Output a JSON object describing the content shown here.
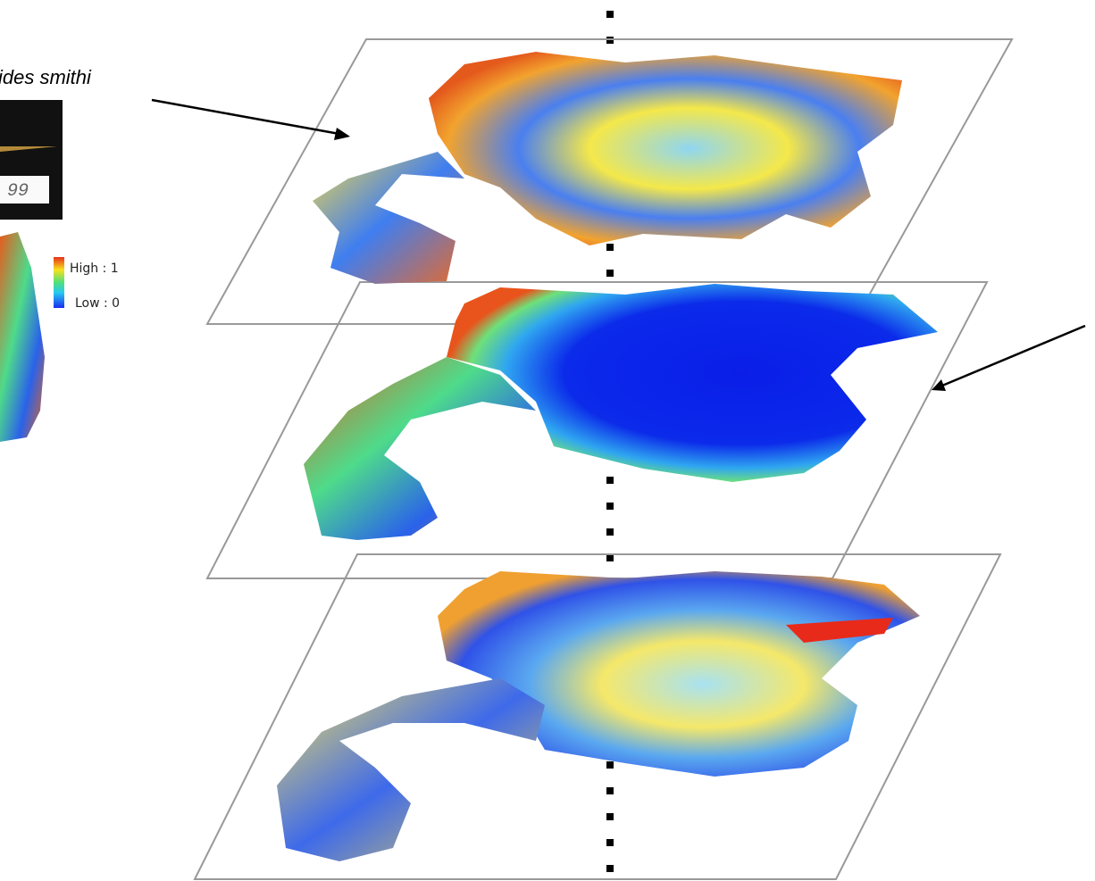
{
  "caption": {
    "species": "ides smithi"
  },
  "specimen_label": "99",
  "legend": {
    "high": "High : 1",
    "low": "Low : 0"
  }
}
